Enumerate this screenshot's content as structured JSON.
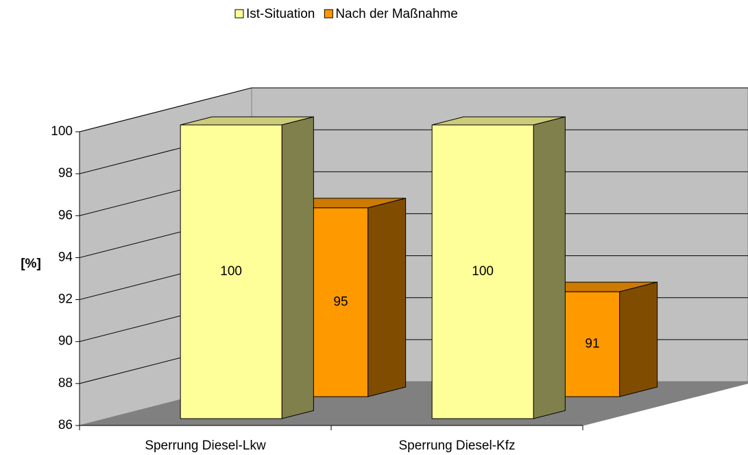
{
  "chart_data": {
    "type": "bar3d",
    "y_label": "[%]",
    "categories": [
      "Sperrung Diesel-Lkw",
      "Sperrung Diesel-Kfz"
    ],
    "series": [
      {
        "name": "Ist-Situation",
        "color": "#ffff99",
        "values": [
          100,
          100
        ]
      },
      {
        "name": "Nach der Maßnahme",
        "color": "#ff9900",
        "values": [
          95,
          91
        ]
      }
    ],
    "ylim": [
      86,
      100
    ],
    "yticks": [
      86,
      88,
      90,
      92,
      94,
      96,
      98,
      100
    ],
    "grid": true,
    "legend": "top",
    "data_labels": true
  }
}
